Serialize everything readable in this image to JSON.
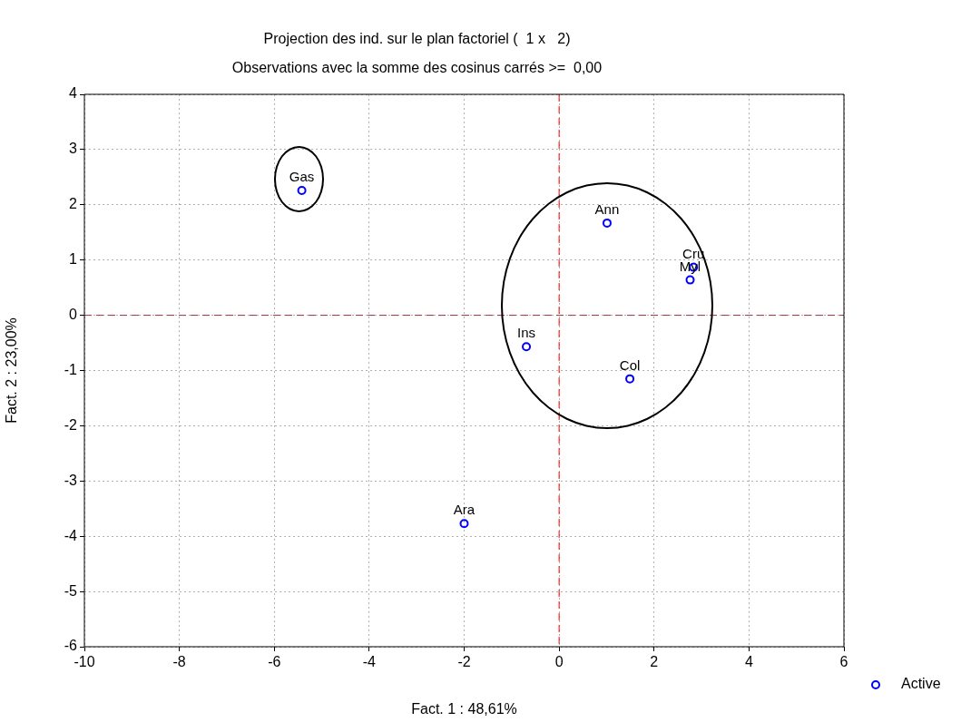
{
  "chart_data": {
    "type": "scatter",
    "title": "Projection des ind. sur le plan factoriel (  1 x   2)",
    "subtitle": "Observations avec la somme des cosinus carrés >=  0,00",
    "xlabel": "Fact. 1 : 48,61%",
    "ylabel": "Fact. 2 : 23,00%",
    "series": [
      {
        "name": "Active",
        "color": "#0000ff",
        "x": [
          -5.42,
          1.01,
          2.83,
          2.76,
          -0.69,
          1.49,
          -2.0
        ],
        "values": [
          2.26,
          1.67,
          0.87,
          0.64,
          -0.57,
          -1.15,
          -3.77
        ]
      }
    ],
    "annotations": [
      {
        "text": "Gas",
        "x": -5.42,
        "y": 2.26
      },
      {
        "text": "Ann",
        "x": 1.01,
        "y": 1.67
      },
      {
        "text": "Cru",
        "x": 2.83,
        "y": 0.87
      },
      {
        "text": "Myl",
        "x": 2.76,
        "y": 0.64
      },
      {
        "text": "Ins",
        "x": -0.69,
        "y": -0.57
      },
      {
        "text": "Col",
        "x": 1.49,
        "y": -1.15
      },
      {
        "text": "Ara",
        "x": -2.0,
        "y": -3.77
      }
    ],
    "xlim": [
      -10,
      6
    ],
    "xticks": [
      -10,
      -8,
      -6,
      -4,
      -2,
      0,
      2,
      4,
      6
    ],
    "ylim": [
      -6,
      4
    ],
    "yticks": [
      -6,
      -5,
      -4,
      -3,
      -2,
      -1,
      0,
      1,
      2,
      3,
      4
    ],
    "ref_lines": [
      {
        "axis": "x",
        "value": 0,
        "color": "#ff0000",
        "line_style": "dashed"
      },
      {
        "axis": "y",
        "value": 0,
        "color": "#a03040",
        "line_style": "dashed"
      }
    ],
    "grid": true,
    "legend": "bottom right",
    "marker": "circle"
  }
}
